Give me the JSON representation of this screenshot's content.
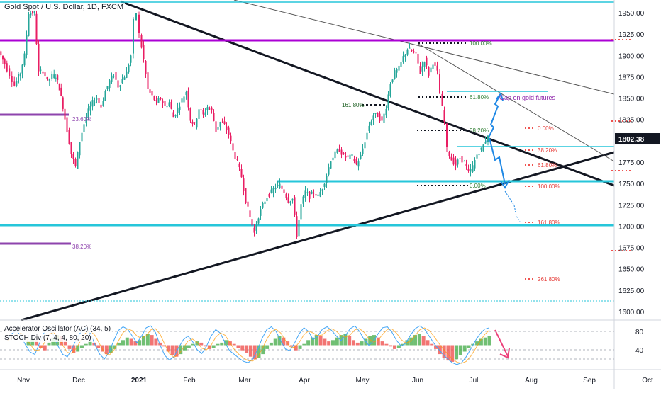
{
  "header": {
    "symbol_title": "Gold Spot / U.S. Dollar, 1D, FXCM"
  },
  "indicators": {
    "ac_label": "Accelerator Oscillator (AC) (34, 5)",
    "stoch_label": "STOCH Div (7, 4, 4, 80, 20)"
  },
  "chart_data": {
    "type": "candlestick",
    "price_axis": {
      "ticks": [
        1950,
        1925,
        1900,
        1875,
        1850,
        1825,
        1800,
        1775,
        1750,
        1725,
        1700,
        1675,
        1650,
        1625,
        1600
      ],
      "ylim": [
        1590,
        1965
      ],
      "current_price": "1802.38"
    },
    "time_axis": {
      "labels": [
        "Nov",
        "Dec",
        "2021",
        "Feb",
        "Mar",
        "Apr",
        "May",
        "Jun",
        "Jul",
        "Aug",
        "Sep",
        "Oct"
      ]
    },
    "oscillator_axis": {
      "ticks": [
        80,
        40
      ],
      "ylim": [
        0,
        100
      ]
    },
    "price_path": [
      [
        0,
        1905
      ],
      [
        8,
        1890
      ],
      [
        15,
        1878
      ],
      [
        22,
        1865
      ],
      [
        30,
        1880
      ],
      [
        36,
        1900
      ],
      [
        42,
        1950
      ],
      [
        50,
        1950
      ],
      [
        56,
        1880
      ],
      [
        62,
        1882
      ],
      [
        68,
        1870
      ],
      [
        75,
        1876
      ],
      [
        80,
        1876
      ],
      [
        85,
        1862
      ],
      [
        90,
        1840
      ],
      [
        96,
        1812
      ],
      [
        102,
        1785
      ],
      [
        108,
        1770
      ],
      [
        114,
        1800
      ],
      [
        120,
        1820
      ],
      [
        126,
        1835
      ],
      [
        132,
        1845
      ],
      [
        138,
        1850
      ],
      [
        144,
        1840
      ],
      [
        150,
        1858
      ],
      [
        156,
        1870
      ],
      [
        162,
        1878
      ],
      [
        168,
        1864
      ],
      [
        174,
        1872
      ],
      [
        180,
        1880
      ],
      [
        186,
        1900
      ],
      [
        190,
        1940
      ],
      [
        194,
        1950
      ],
      [
        198,
        1925
      ],
      [
        204,
        1895
      ],
      [
        210,
        1860
      ],
      [
        216,
        1852
      ],
      [
        222,
        1845
      ],
      [
        228,
        1850
      ],
      [
        234,
        1840
      ],
      [
        240,
        1845
      ],
      [
        246,
        1828
      ],
      [
        252,
        1838
      ],
      [
        258,
        1848
      ],
      [
        264,
        1858
      ],
      [
        270,
        1825
      ],
      [
        276,
        1818
      ],
      [
        282,
        1838
      ],
      [
        288,
        1830
      ],
      [
        294,
        1840
      ],
      [
        300,
        1835
      ],
      [
        306,
        1812
      ],
      [
        312,
        1822
      ],
      [
        318,
        1818
      ],
      [
        324,
        1808
      ],
      [
        330,
        1788
      ],
      [
        336,
        1775
      ],
      [
        342,
        1758
      ],
      [
        348,
        1730
      ],
      [
        354,
        1710
      ],
      [
        360,
        1692
      ],
      [
        366,
        1712
      ],
      [
        372,
        1725
      ],
      [
        378,
        1735
      ],
      [
        384,
        1740
      ],
      [
        390,
        1746
      ],
      [
        396,
        1748
      ],
      [
        402,
        1740
      ],
      [
        408,
        1730
      ],
      [
        414,
        1732
      ],
      [
        420,
        1690
      ],
      [
        426,
        1725
      ],
      [
        432,
        1740
      ],
      [
        438,
        1735
      ],
      [
        444,
        1740
      ],
      [
        450,
        1735
      ],
      [
        456,
        1745
      ],
      [
        462,
        1760
      ],
      [
        468,
        1778
      ],
      [
        474,
        1785
      ],
      [
        480,
        1790
      ],
      [
        486,
        1782
      ],
      [
        492,
        1780
      ],
      [
        498,
        1782
      ],
      [
        504,
        1772
      ],
      [
        510,
        1782
      ],
      [
        516,
        1800
      ],
      [
        522,
        1818
      ],
      [
        528,
        1830
      ],
      [
        534,
        1830
      ],
      [
        540,
        1822
      ],
      [
        546,
        1840
      ],
      [
        552,
        1868
      ],
      [
        558,
        1880
      ],
      [
        564,
        1885
      ],
      [
        570,
        1898
      ],
      [
        576,
        1908
      ],
      [
        582,
        1905
      ],
      [
        588,
        1900
      ],
      [
        594,
        1880
      ],
      [
        600,
        1895
      ],
      [
        606,
        1878
      ],
      [
        612,
        1892
      ],
      [
        618,
        1880
      ],
      [
        622,
        1855
      ],
      [
        628,
        1822
      ],
      [
        632,
        1790
      ],
      [
        638,
        1778
      ],
      [
        644,
        1772
      ],
      [
        650,
        1780
      ],
      [
        656,
        1775
      ],
      [
        662,
        1762
      ],
      [
        668,
        1770
      ],
      [
        674,
        1784
      ],
      [
        680,
        1790
      ],
      [
        686,
        1800
      ],
      [
        690,
        1808
      ]
    ],
    "ac_values": [
      3,
      5,
      4,
      -2,
      -4,
      2,
      6,
      8,
      7,
      4,
      -3,
      -6,
      -5,
      -2,
      1,
      3,
      2,
      -2,
      -5,
      -7,
      -6,
      -3,
      2,
      4,
      6,
      5,
      3,
      4,
      7,
      9,
      8,
      5,
      2,
      -1,
      -5,
      -8,
      -9,
      -7,
      -4,
      -2,
      1,
      3,
      2,
      -1,
      -3,
      -2,
      1,
      2,
      4,
      3,
      1,
      -2,
      -4,
      -6,
      -9,
      -11,
      -10,
      -7,
      -3,
      2,
      5,
      7,
      6,
      3,
      -1,
      -4,
      -3,
      1,
      4,
      6,
      8,
      7,
      5,
      3,
      4,
      6,
      8,
      9,
      7,
      4,
      2,
      3,
      5,
      7,
      8,
      6,
      3,
      1,
      -1,
      -3,
      -2,
      1,
      4,
      6,
      8,
      9,
      7,
      4,
      1,
      -3,
      -7,
      -10,
      -12,
      -13,
      -11,
      -8,
      -5,
      -2,
      1,
      3,
      5,
      6,
      7
    ],
    "stoch_values": [
      60,
      75,
      82,
      70,
      50,
      35,
      30,
      55,
      78,
      85,
      72,
      48,
      30,
      25,
      42,
      65,
      80,
      88,
      75,
      50,
      30,
      20,
      35,
      60,
      82,
      90,
      85,
      70,
      55,
      70,
      88,
      92,
      78,
      50,
      28,
      18,
      25,
      45,
      62,
      70,
      58,
      40,
      32,
      48,
      70,
      84,
      76,
      55,
      38,
      30,
      22,
      15,
      12,
      20,
      40,
      65,
      84,
      90,
      80,
      60,
      42,
      38,
      55,
      75,
      88,
      80,
      62,
      70,
      85,
      90,
      82,
      70,
      60,
      72,
      86,
      92,
      80,
      62,
      50,
      58,
      75,
      88,
      90,
      78,
      60,
      48,
      55,
      72,
      86,
      92,
      85,
      70,
      55,
      42,
      30,
      20,
      12,
      8,
      12,
      25,
      42,
      60,
      75,
      85,
      88
    ],
    "fib_labels": {
      "upper_100": "100.00%",
      "upper_618": "61.80%",
      "upper_382": "38.20%",
      "upper_0": "0.00%",
      "ext_1618": "161.80%",
      "right_0": "0.00%",
      "right_382": "38.20%",
      "right_618": "61.80%",
      "right_100": "100.00%",
      "right_1618": "161.80%",
      "right_2618": "261.80%",
      "left_236": "23.60%",
      "left_382": "38.20%"
    },
    "annotations": {
      "gap_label": "Gap on gold  futures"
    },
    "colors": {
      "up": "#26a69a",
      "down": "#e91e63",
      "oscillator_up": "#4caf50",
      "oscillator_down": "#ef5350",
      "cyan_line": "#26c6da",
      "magenta_line": "#ab00d4",
      "purple_line": "#8e44ad",
      "arrow_blue": "#1e88e5",
      "arrow_pink": "#ec407a",
      "price_label_bg": "#131722"
    }
  }
}
